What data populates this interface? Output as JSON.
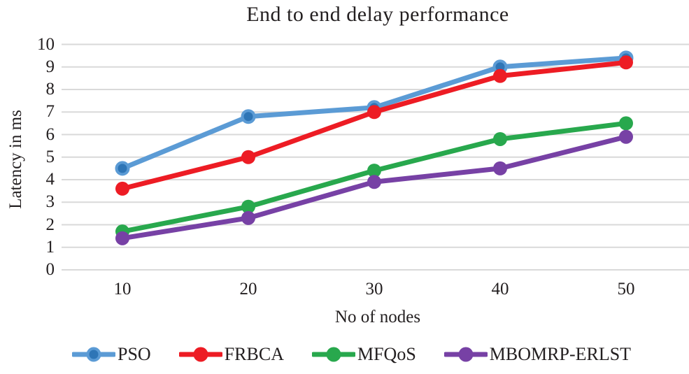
{
  "chart_data": {
    "type": "line",
    "title": "End to end delay performance",
    "xlabel": "No of nodes",
    "ylabel": "Latency in ms",
    "x": [
      10,
      20,
      30,
      40,
      50
    ],
    "ylim": [
      0,
      10
    ],
    "ytick_step": 1,
    "grid": "horizontal-only",
    "gridline_color": "#d9d9d9",
    "text_color": "#231f20",
    "legend_position": "bottom",
    "series": [
      {
        "name": "PSO",
        "values": [
          4.5,
          6.8,
          7.2,
          9.0,
          9.4
        ],
        "color": "#5b9bd5",
        "marker_color": "#2e75b6"
      },
      {
        "name": "FRBCA",
        "values": [
          3.6,
          5.0,
          7.0,
          8.6,
          9.2
        ],
        "color": "#ed1c24",
        "marker_color": "#ed1c24"
      },
      {
        "name": "MFQoS",
        "values": [
          1.7,
          2.8,
          4.4,
          5.8,
          6.5
        ],
        "color": "#28a84d",
        "marker_color": "#28a84d"
      },
      {
        "name": "MBOMRP-ERLST",
        "values": [
          1.4,
          2.3,
          3.9,
          4.5,
          5.9
        ],
        "color": "#7741a5",
        "marker_color": "#7741a5"
      }
    ]
  }
}
